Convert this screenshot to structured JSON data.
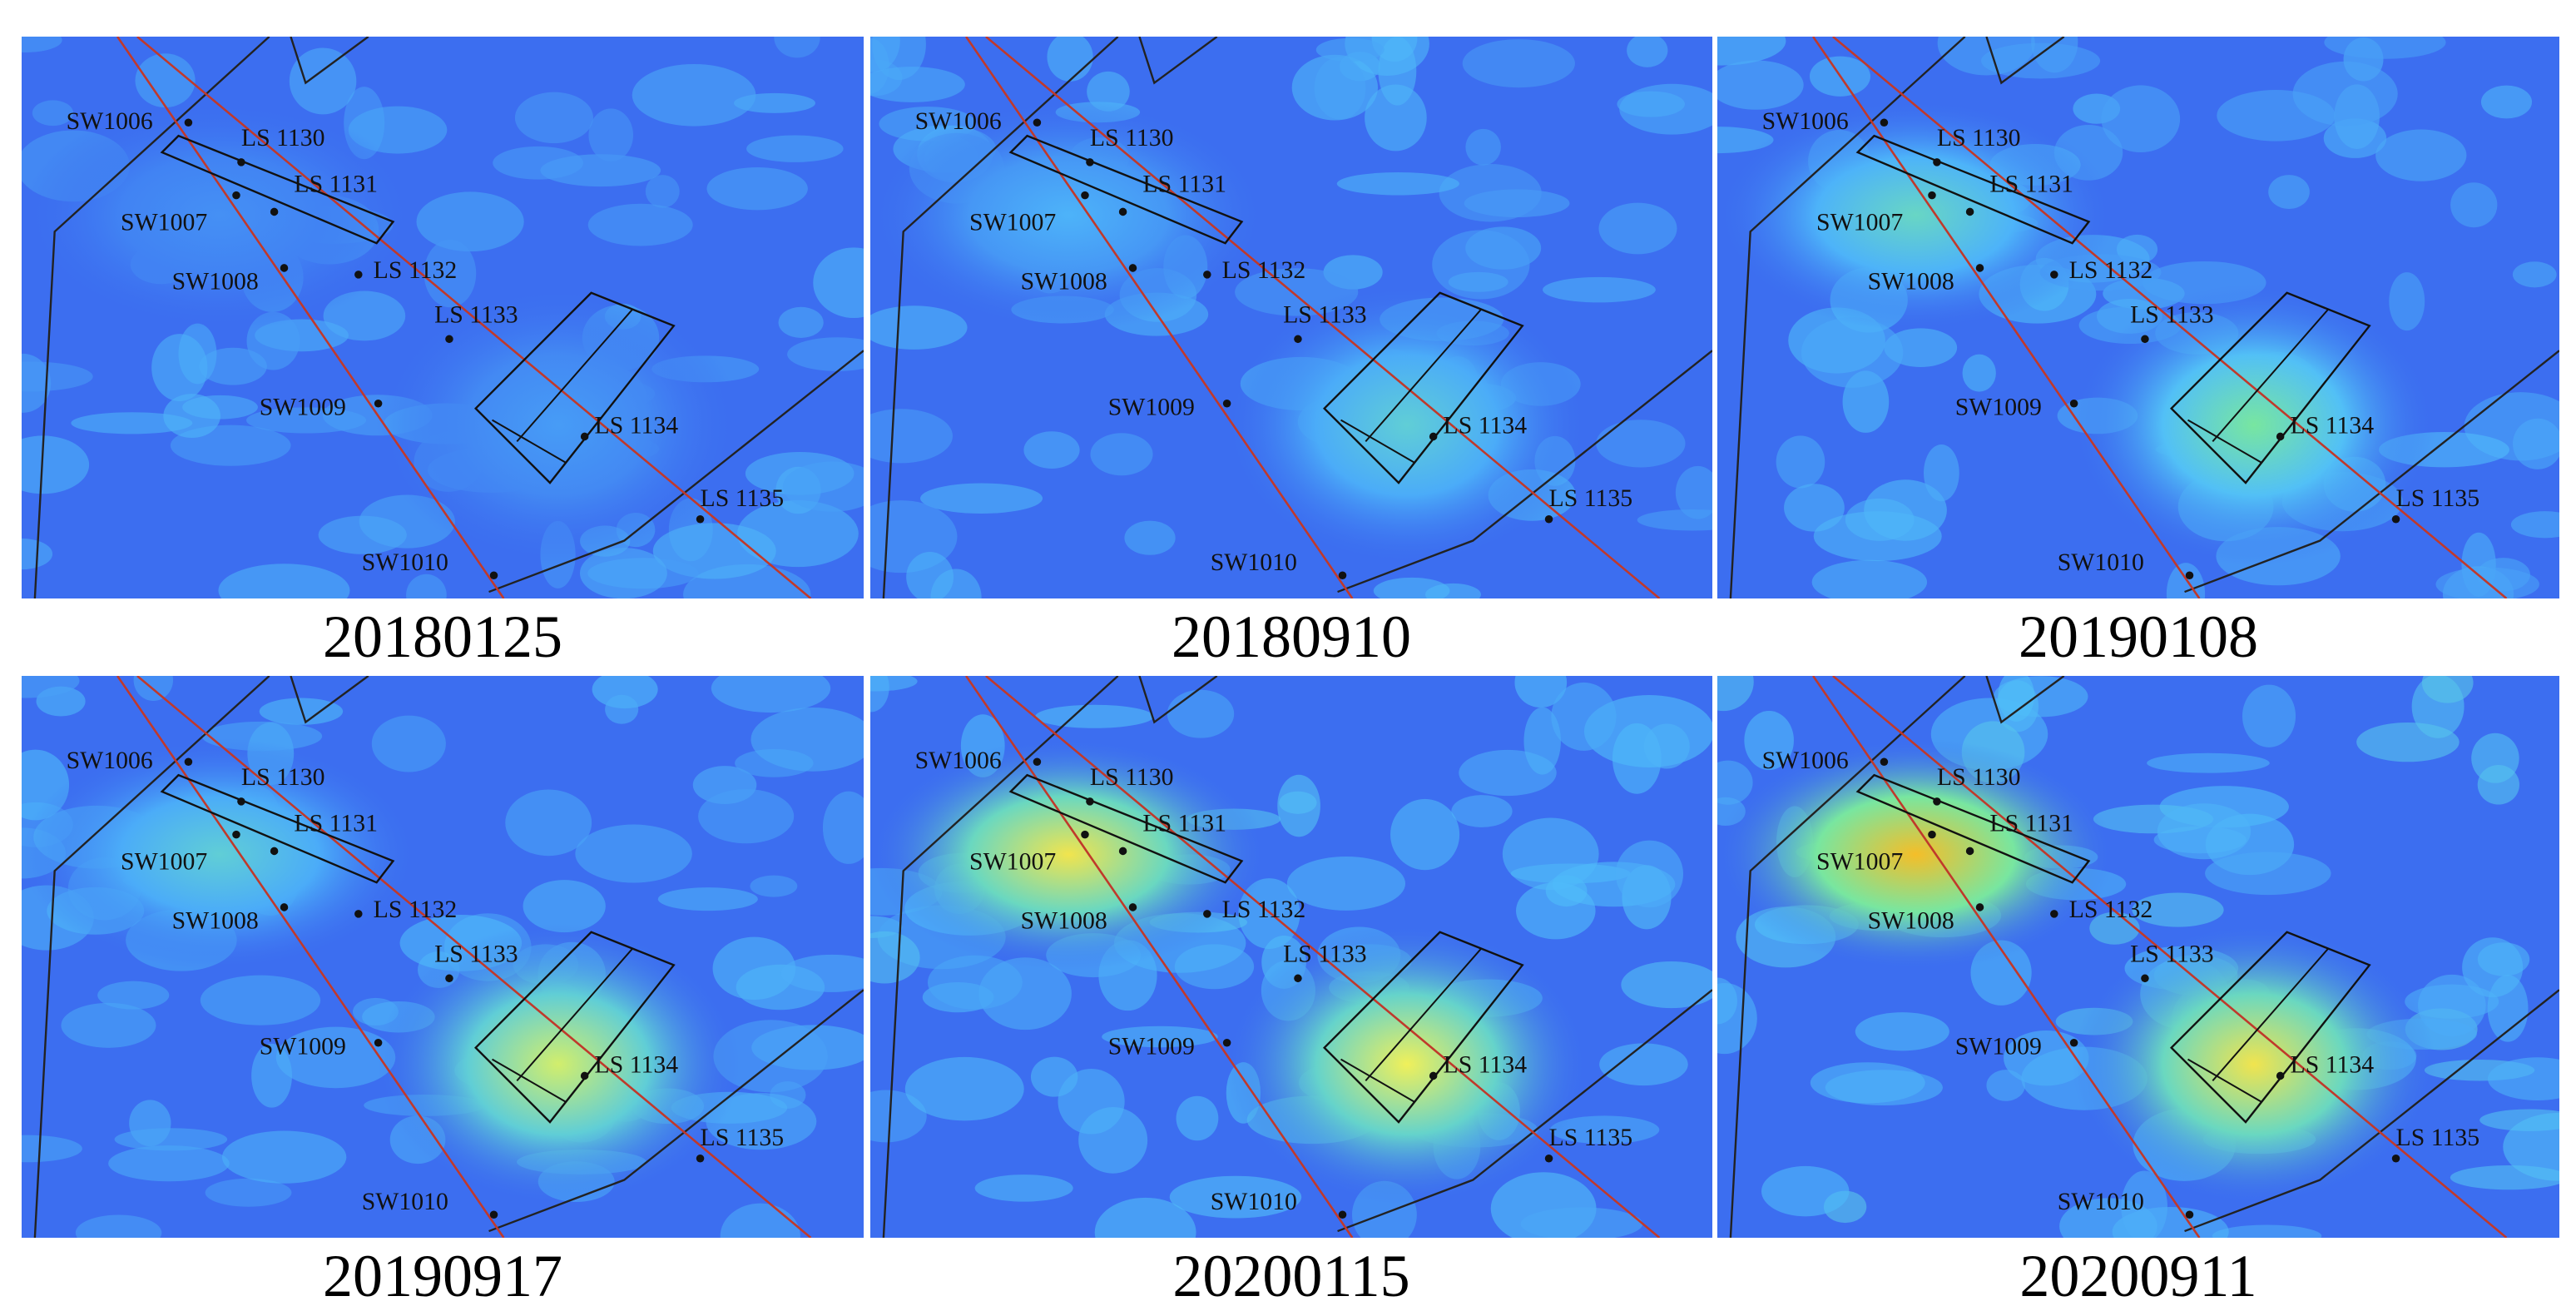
{
  "panels": [
    {
      "date": "20180125"
    },
    {
      "date": "20180910"
    },
    {
      "date": "20190108"
    },
    {
      "date": "20190917"
    },
    {
      "date": "20200115"
    },
    {
      "date": "20200911"
    }
  ],
  "stations": [
    "SW1006",
    "LS 1130",
    "LS 1131",
    "SW1007",
    "SW1008",
    "LS 1132",
    "LS 1133",
    "SW1009",
    "LS 1134",
    "LS 1135",
    "SW1010"
  ]
}
